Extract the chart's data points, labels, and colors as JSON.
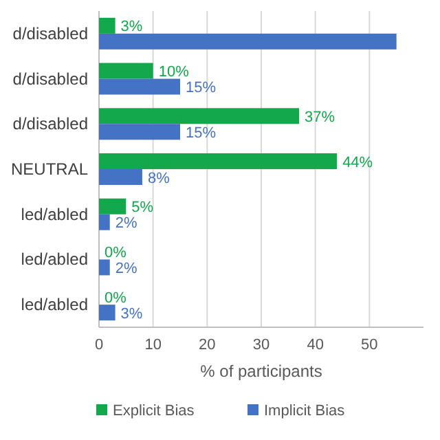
{
  "chart_data": {
    "type": "bar",
    "orientation": "horizontal",
    "xlabel": "% of participants",
    "categories": [
      "d/disabled",
      "d/disabled",
      "d/disabled",
      "NEUTRAL",
      "led/abled",
      "led/abled",
      "led/abled"
    ],
    "series": [
      {
        "name": "Explicit Bias",
        "color": "#12a84b",
        "values": [
          3,
          10,
          37,
          44,
          5,
          0,
          0
        ],
        "value_labels": [
          "3%",
          "10%",
          "37%",
          "44%",
          "5%",
          "0%",
          "0%"
        ]
      },
      {
        "name": "Implicit Bias",
        "color": "#4472c4",
        "values": [
          55,
          15,
          15,
          8,
          2,
          2,
          3
        ],
        "value_labels": [
          null,
          "15%",
          "15%",
          "8%",
          "2%",
          "2%",
          "3%"
        ]
      }
    ],
    "xlim": [
      0,
      60
    ],
    "xticks": [
      0,
      10,
      20,
      30,
      40,
      50
    ],
    "grid": "x",
    "legend": "bottom"
  }
}
